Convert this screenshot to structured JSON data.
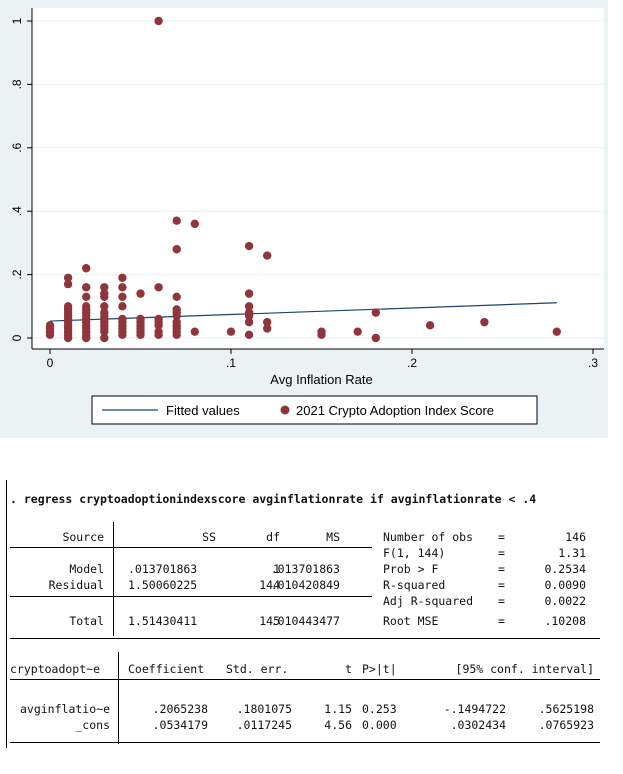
{
  "chart_data": {
    "type": "scatter",
    "xlabel": "Avg Inflation Rate",
    "ylabel": "",
    "xlim": [
      0,
      0.3
    ],
    "ylim": [
      0,
      1
    ],
    "x_ticks": [
      0,
      0.1,
      0.2,
      0.3
    ],
    "x_tick_labels": [
      "0",
      ".1",
      ".2",
      ".3"
    ],
    "y_ticks": [
      0,
      0.2,
      0.4,
      0.6,
      0.8,
      1
    ],
    "y_tick_labels": [
      "0",
      ".2",
      ".4",
      ".6",
      ".8",
      "1"
    ],
    "grid": "horizontal",
    "legend_position": "bottom",
    "series": [
      {
        "name": "Fitted values",
        "kind": "line",
        "color": "#1a476f",
        "points": [
          [
            0,
            0.0534179
          ],
          [
            0.28,
            0.11125
          ]
        ]
      },
      {
        "name": "2021 Crypto Adoption Index Score",
        "kind": "scatter",
        "color": "#90353b",
        "points": [
          [
            0,
            0.01
          ],
          [
            0,
            0.02
          ],
          [
            0,
            0.03
          ],
          [
            0,
            0.04
          ],
          [
            0.01,
            0
          ],
          [
            0.01,
            0.01
          ],
          [
            0.01,
            0.02
          ],
          [
            0.01,
            0.03
          ],
          [
            0.01,
            0.04
          ],
          [
            0.01,
            0.05
          ],
          [
            0.01,
            0.06
          ],
          [
            0.01,
            0.07
          ],
          [
            0.01,
            0.08
          ],
          [
            0.01,
            0.09
          ],
          [
            0.01,
            0.1
          ],
          [
            0.01,
            0.17
          ],
          [
            0.01,
            0.19
          ],
          [
            0.02,
            0
          ],
          [
            0.02,
            0.01
          ],
          [
            0.02,
            0.02
          ],
          [
            0.02,
            0.03
          ],
          [
            0.02,
            0.04
          ],
          [
            0.02,
            0.05
          ],
          [
            0.02,
            0.06
          ],
          [
            0.02,
            0.07
          ],
          [
            0.02,
            0.08
          ],
          [
            0.02,
            0.09
          ],
          [
            0.02,
            0.1
          ],
          [
            0.02,
            0.13
          ],
          [
            0.02,
            0.16
          ],
          [
            0.02,
            0.22
          ],
          [
            0.03,
            0
          ],
          [
            0.03,
            0.02
          ],
          [
            0.03,
            0.03
          ],
          [
            0.03,
            0.04
          ],
          [
            0.03,
            0.05
          ],
          [
            0.03,
            0.06
          ],
          [
            0.03,
            0.07
          ],
          [
            0.03,
            0.08
          ],
          [
            0.03,
            0.1
          ],
          [
            0.03,
            0.13
          ],
          [
            0.03,
            0.14
          ],
          [
            0.03,
            0.16
          ],
          [
            0.04,
            0.01
          ],
          [
            0.04,
            0.02
          ],
          [
            0.04,
            0.03
          ],
          [
            0.04,
            0.04
          ],
          [
            0.04,
            0.05
          ],
          [
            0.04,
            0.06
          ],
          [
            0.04,
            0.1
          ],
          [
            0.04,
            0.13
          ],
          [
            0.04,
            0.16
          ],
          [
            0.04,
            0.19
          ],
          [
            0.05,
            0.01
          ],
          [
            0.05,
            0.02
          ],
          [
            0.05,
            0.03
          ],
          [
            0.05,
            0.04
          ],
          [
            0.05,
            0.05
          ],
          [
            0.05,
            0.06
          ],
          [
            0.05,
            0.14
          ],
          [
            0.06,
            0.01
          ],
          [
            0.06,
            0.02
          ],
          [
            0.06,
            0.04
          ],
          [
            0.06,
            0.05
          ],
          [
            0.06,
            0.06
          ],
          [
            0.06,
            0.16
          ],
          [
            0.06,
            1.0
          ],
          [
            0.07,
            0.01
          ],
          [
            0.07,
            0.02
          ],
          [
            0.07,
            0.03
          ],
          [
            0.07,
            0.04
          ],
          [
            0.07,
            0.05
          ],
          [
            0.07,
            0.07
          ],
          [
            0.07,
            0.08
          ],
          [
            0.07,
            0.09
          ],
          [
            0.07,
            0.13
          ],
          [
            0.07,
            0.28
          ],
          [
            0.07,
            0.37
          ],
          [
            0.08,
            0.02
          ],
          [
            0.08,
            0.36
          ],
          [
            0.1,
            0.02
          ],
          [
            0.11,
            0.01
          ],
          [
            0.11,
            0.05
          ],
          [
            0.11,
            0.07
          ],
          [
            0.11,
            0.08
          ],
          [
            0.11,
            0.1
          ],
          [
            0.11,
            0.14
          ],
          [
            0.11,
            0.29
          ],
          [
            0.12,
            0.03
          ],
          [
            0.12,
            0.05
          ],
          [
            0.12,
            0.26
          ],
          [
            0.15,
            0.01
          ],
          [
            0.15,
            0.02
          ],
          [
            0.17,
            0.02
          ],
          [
            0.18,
            0
          ],
          [
            0.18,
            0.08
          ],
          [
            0.21,
            0.04
          ],
          [
            0.24,
            0.05
          ],
          [
            0.28,
            0.02
          ]
        ]
      }
    ]
  },
  "regression": {
    "command": ". regress cryptoadoptionindexscore avginflationrate if avginflationrate < .4",
    "anova": {
      "headers": [
        "Source",
        "SS",
        "df",
        "MS"
      ],
      "rows": [
        [
          "Model",
          ".013701863",
          "1",
          ".013701863"
        ],
        [
          "Residual",
          "1.50060225",
          "144",
          ".010420849"
        ]
      ],
      "total": [
        "Total",
        "1.51430411",
        "145",
        ".010443477"
      ]
    },
    "stats": [
      [
        "Number of obs",
        "=",
        "146"
      ],
      [
        "F(1, 144)",
        "=",
        "1.31"
      ],
      [
        "Prob > F",
        "=",
        "0.2534"
      ],
      [
        "R-squared",
        "=",
        "0.0090"
      ],
      [
        "Adj R-squared",
        "=",
        "0.0022"
      ],
      [
        "Root MSE",
        "=",
        ".10208"
      ]
    ],
    "coef_headers": [
      "cryptoadopt~e",
      "Coefficient",
      "Std. err.",
      "t",
      "P>|t|",
      "[95% conf. interval]"
    ],
    "coef_rows": [
      [
        "avginflatio~e",
        ".2065238",
        ".1801075",
        "1.15",
        "0.253",
        "-.1494722",
        ".5625198"
      ],
      [
        "_cons",
        ".0534179",
        ".0117245",
        "4.56",
        "0.000",
        ".0302434",
        ".0765923"
      ]
    ]
  }
}
